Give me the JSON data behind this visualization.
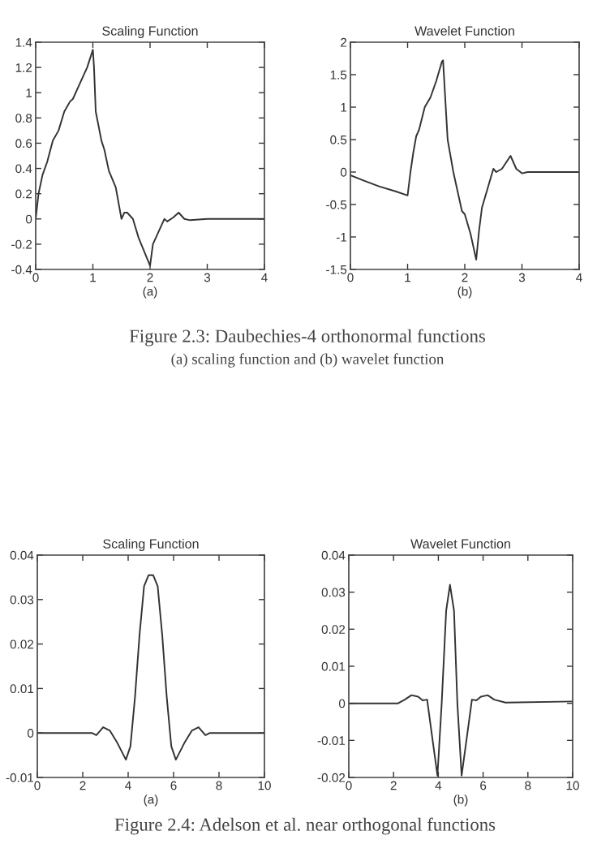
{
  "chart_data": [
    {
      "type": "line",
      "title": "Scaling Function",
      "xlabel": "(a)",
      "annotations": [
        "Figure 2.3: Daubechies-4 orthonormal functions",
        "(a) scaling function and (b) wavelet function"
      ],
      "series": [
        {
          "color": "#333333",
          "x": [
            0,
            0.05,
            0.12,
            0.2,
            0.3,
            0.4,
            0.5,
            0.6,
            0.65,
            0.75,
            0.9,
            1.0,
            1.02,
            1.05,
            1.15,
            1.2,
            1.28,
            1.3,
            1.4,
            1.5,
            1.55,
            1.6,
            1.7,
            1.8,
            2.0,
            2.05,
            2.15,
            2.25,
            2.3,
            2.4,
            2.5,
            2.6,
            2.7,
            3.0,
            4.0
          ],
          "values": [
            0,
            0.2,
            0.35,
            0.45,
            0.62,
            0.7,
            0.85,
            0.93,
            0.95,
            1.05,
            1.2,
            1.34,
            1.2,
            0.85,
            0.62,
            0.55,
            0.38,
            0.36,
            0.25,
            0.0,
            0.05,
            0.05,
            0.0,
            -0.15,
            -0.37,
            -0.2,
            -0.1,
            0.0,
            -0.02,
            0.01,
            0.05,
            0.0,
            -0.01,
            0,
            0
          ]
        }
      ],
      "xlim": [
        0,
        4
      ],
      "ylim": [
        -0.4,
        1.4
      ],
      "xticks": [
        0,
        1,
        2,
        3,
        4
      ],
      "yticks": [
        -0.4,
        -0.2,
        0,
        0.2,
        0.4,
        0.6,
        0.8,
        1,
        1.2,
        1.4
      ],
      "grid": false,
      "legend": false
    },
    {
      "type": "line",
      "title": "Wavelet Function",
      "xlabel": "(b)",
      "series": [
        {
          "color": "#333333",
          "x": [
            0,
            0.2,
            0.5,
            0.8,
            1.0,
            1.05,
            1.1,
            1.15,
            1.2,
            1.3,
            1.4,
            1.5,
            1.6,
            1.62,
            1.7,
            1.8,
            1.85,
            1.95,
            2.0,
            2.1,
            2.2,
            2.25,
            2.3,
            2.4,
            2.5,
            2.55,
            2.65,
            2.8,
            2.9,
            3.0,
            3.1,
            4.0
          ],
          "values": [
            -0.05,
            -0.12,
            -0.22,
            -0.3,
            -0.36,
            0.0,
            0.3,
            0.55,
            0.65,
            1.0,
            1.15,
            1.4,
            1.7,
            1.72,
            0.5,
            0.0,
            -0.2,
            -0.6,
            -0.65,
            -0.95,
            -1.35,
            -0.9,
            -0.55,
            -0.25,
            0.05,
            0.0,
            0.05,
            0.25,
            0.05,
            -0.02,
            0.0,
            0.0
          ]
        }
      ],
      "xlim": [
        0,
        4
      ],
      "ylim": [
        -1.5,
        2
      ],
      "xticks": [
        0,
        1,
        2,
        3,
        4
      ],
      "yticks": [
        -1.5,
        -1,
        -0.5,
        0,
        0.5,
        1,
        1.5,
        2
      ],
      "grid": false,
      "legend": false
    },
    {
      "type": "line",
      "title": "Scaling Function",
      "xlabel": "(a)",
      "annotations": [
        "Figure 2.4: Adelson et al. near orthogonal functions"
      ],
      "series": [
        {
          "color": "#333333",
          "x": [
            0,
            2.4,
            2.6,
            2.9,
            3.2,
            3.5,
            3.9,
            4.1,
            4.3,
            4.5,
            4.7,
            4.9,
            5.1,
            5.3,
            5.5,
            5.7,
            5.9,
            6.1,
            6.5,
            6.8,
            7.1,
            7.4,
            7.6,
            10
          ],
          "values": [
            0,
            0,
            -0.0005,
            0.0013,
            0.0005,
            -0.002,
            -0.006,
            -0.003,
            0.008,
            0.022,
            0.033,
            0.0355,
            0.0355,
            0.033,
            0.022,
            0.008,
            -0.003,
            -0.006,
            -0.002,
            0.0005,
            0.0013,
            -0.0005,
            0,
            0
          ]
        }
      ],
      "xlim": [
        0,
        10
      ],
      "ylim": [
        -0.01,
        0.04
      ],
      "xticks": [
        0,
        2,
        4,
        6,
        8,
        10
      ],
      "yticks": [
        -0.01,
        0,
        0.01,
        0.02,
        0.03,
        0.04
      ],
      "grid": false,
      "legend": false
    },
    {
      "type": "line",
      "title": "Wavelet Function",
      "xlabel": "(b)",
      "series": [
        {
          "color": "#333333",
          "x": [
            0,
            2.2,
            2.5,
            2.8,
            3.1,
            3.3,
            3.5,
            3.7,
            3.96,
            4.15,
            4.35,
            4.52,
            4.7,
            4.85,
            5.04,
            5.3,
            5.5,
            5.7,
            5.9,
            6.2,
            6.5,
            7.0,
            10
          ],
          "values": [
            0,
            0,
            0.001,
            0.0022,
            0.0018,
            0.0008,
            0.001,
            -0.008,
            -0.0195,
            0.0,
            0.025,
            0.032,
            0.025,
            0.0,
            -0.0195,
            -0.008,
            0.001,
            0.0008,
            0.0018,
            0.0022,
            0.001,
            0.0002,
            0.0005
          ]
        }
      ],
      "xlim": [
        0,
        10
      ],
      "ylim": [
        -0.02,
        0.04
      ],
      "xticks": [
        0,
        2,
        4,
        6,
        8,
        10
      ],
      "yticks": [
        -0.02,
        -0.01,
        0,
        0.01,
        0.02,
        0.03,
        0.04
      ],
      "grid": false,
      "legend": false
    }
  ]
}
